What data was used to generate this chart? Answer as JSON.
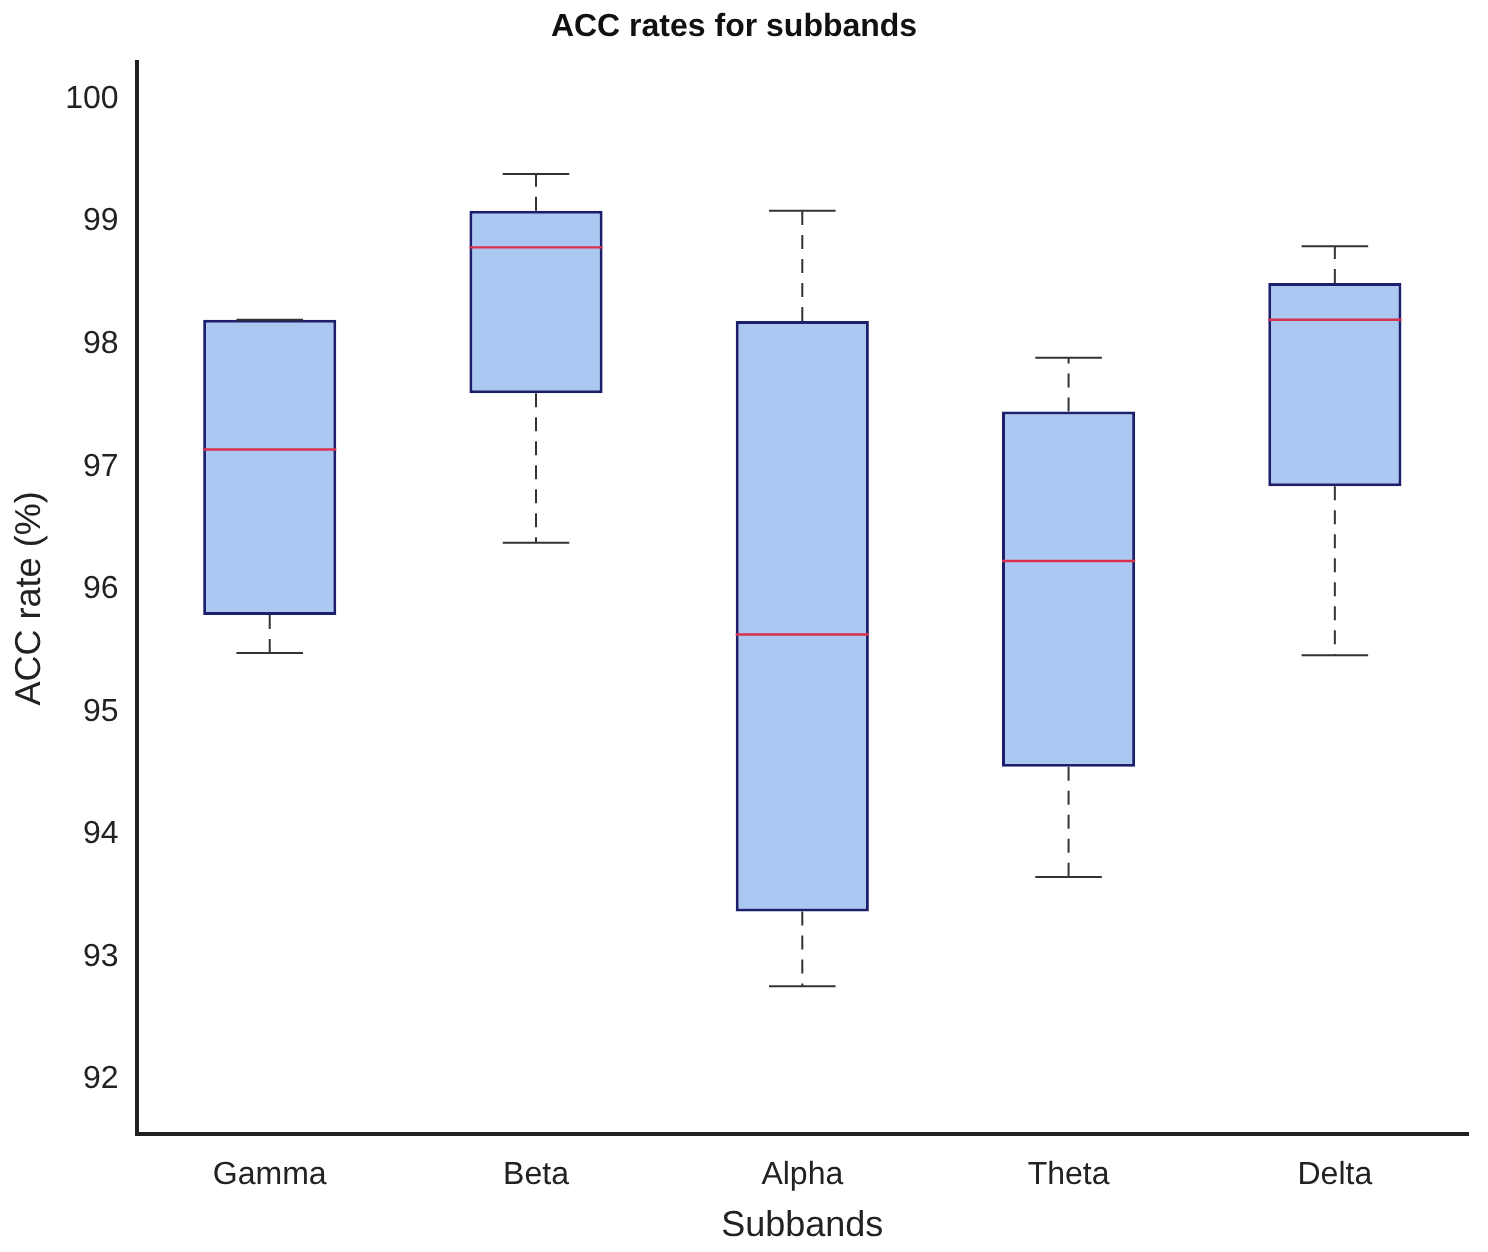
{
  "chart_data": {
    "type": "box",
    "title": "ACC rates for subbands",
    "xlabel": "Subbands",
    "ylabel": "ACC rate (%)",
    "categories": [
      "Gamma",
      "Beta",
      "Alpha",
      "Theta",
      "Delta"
    ],
    "boxes": [
      {
        "low": 95.48,
        "q1": 95.79,
        "median": 97.14,
        "q3": 98.2,
        "high": 98.2
      },
      {
        "low": 96.38,
        "q1": 97.6,
        "median": 98.79,
        "q3": 99.09,
        "high": 99.39
      },
      {
        "low": 92.76,
        "q1": 93.37,
        "median": 95.63,
        "q3": 98.19,
        "high": 99.09
      },
      {
        "low": 93.65,
        "q1": 94.55,
        "median": 96.23,
        "q3": 97.45,
        "high": 97.89
      },
      {
        "low": 95.46,
        "q1": 96.84,
        "median": 98.2,
        "q3": 98.5,
        "high": 98.8
      }
    ],
    "color": "#abc8f2",
    "ylim": [
      91.55,
      100.3
    ],
    "yticks": [
      92,
      93,
      94,
      95,
      96,
      97,
      98,
      99,
      100
    ],
    "grid": false,
    "legend": false
  }
}
